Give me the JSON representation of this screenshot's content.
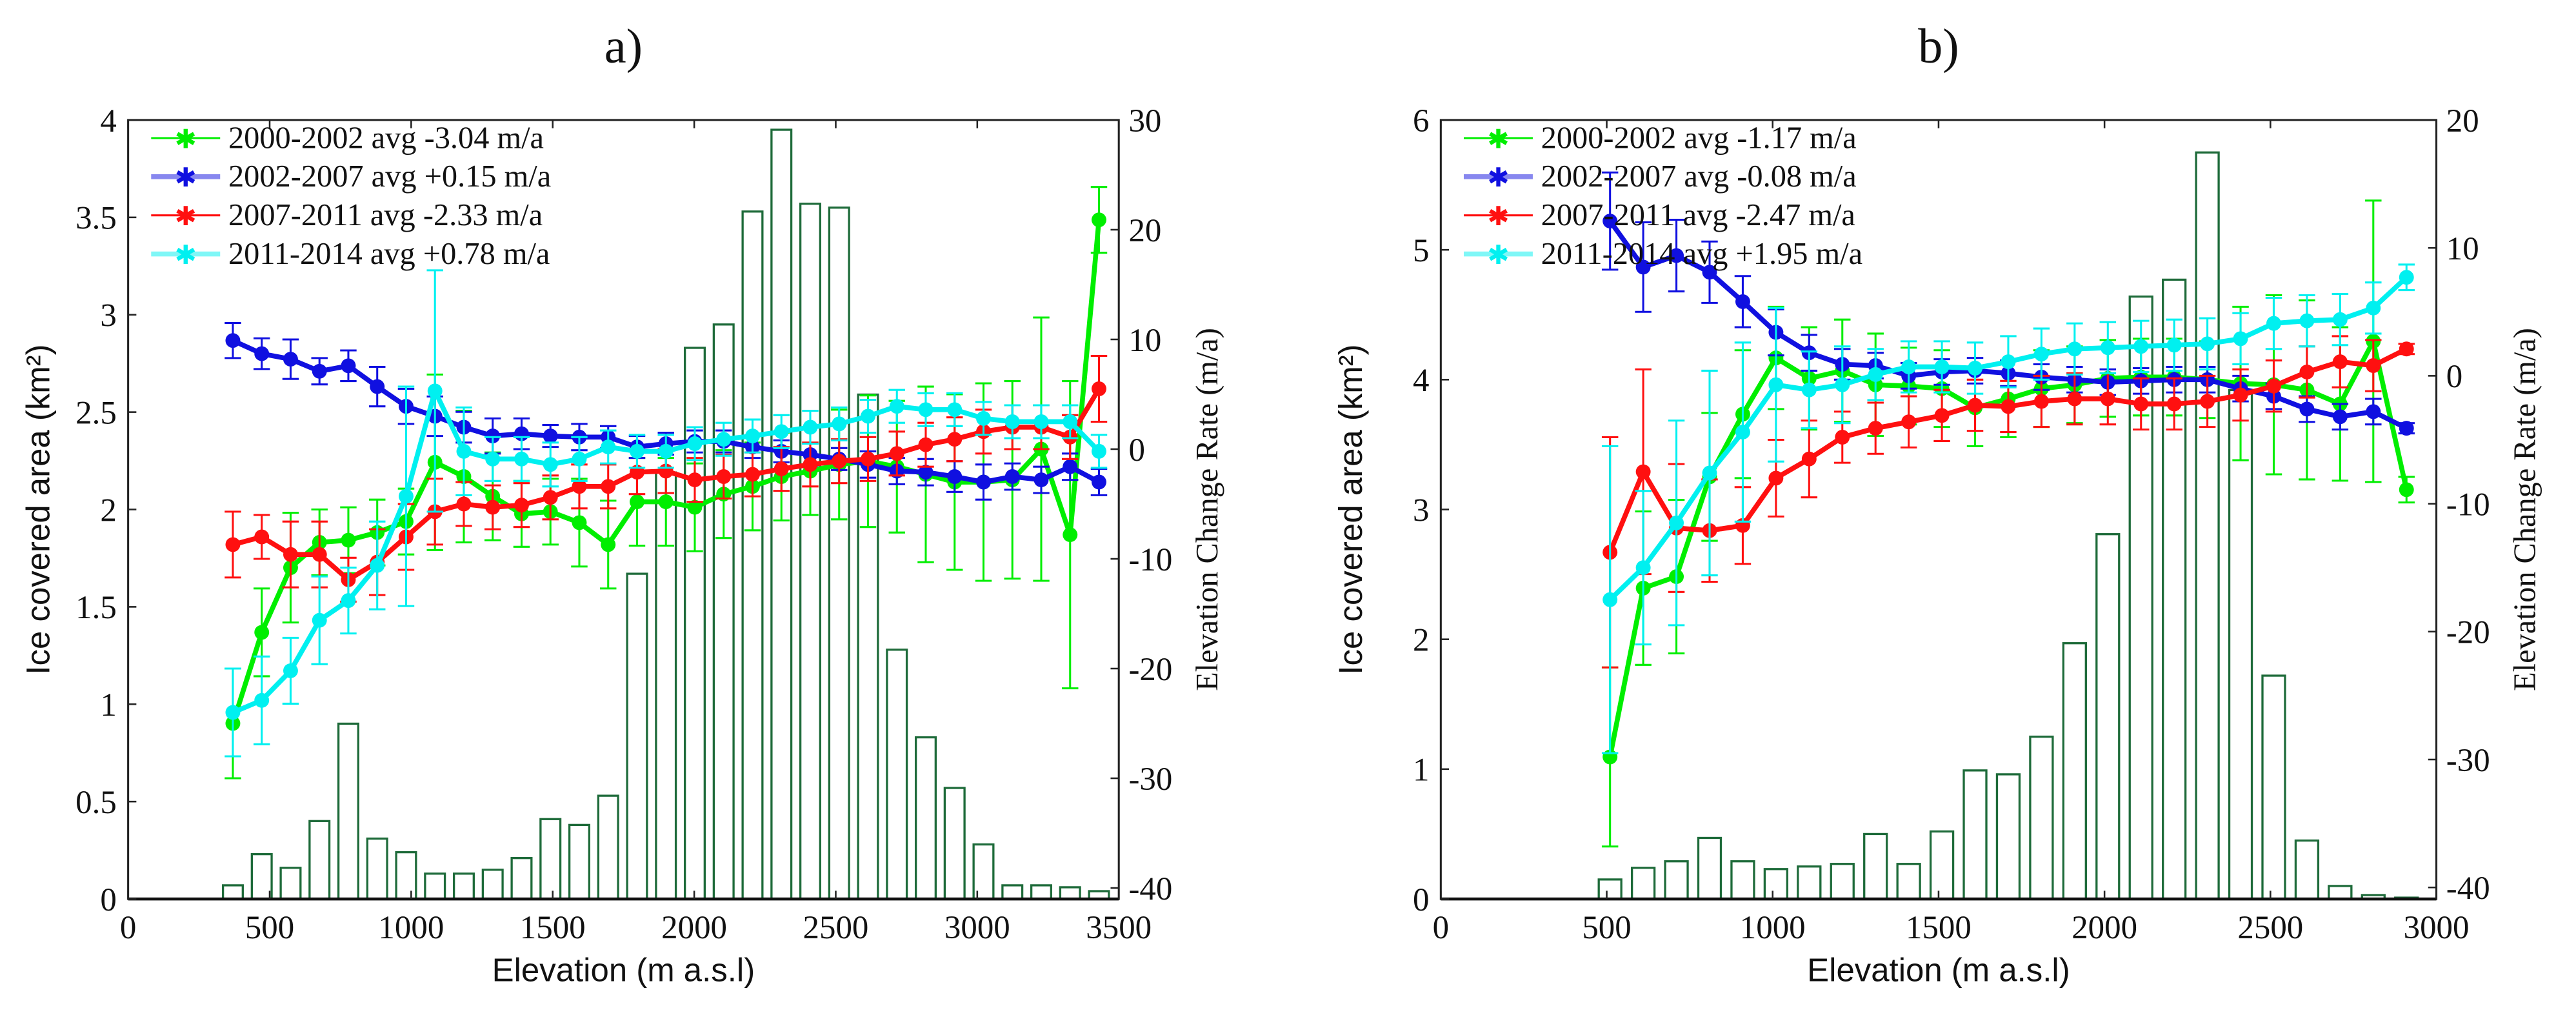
{
  "chart_data": [
    {
      "type": "bar+line",
      "title": "a)",
      "xlabel": "Elevation (m a.s.l)",
      "ylabel": "Ice covered area (km²)",
      "ylabel_right": "Elevation Change Rate (m/a)",
      "xlim": [
        0,
        3500
      ],
      "ylim": [
        0,
        4
      ],
      "ylim_right": [
        -41,
        30
      ],
      "xticks": [
        "0",
        "500",
        "1000",
        "1500",
        "2000",
        "2500",
        "3000",
        "3500"
      ],
      "yticks": [
        "0",
        "0.5",
        "1",
        "1.5",
        "2",
        "2.5",
        "3",
        "3.5",
        "4"
      ],
      "yticks_right": [
        "-40",
        "-30",
        "-20",
        "-10",
        "0",
        "10",
        "20",
        "30"
      ],
      "legend_position": "top-left",
      "bar_color": "#1e6b3a",
      "x": [
        370,
        472,
        574,
        676,
        778,
        880,
        982,
        1084,
        1186,
        1288,
        1390,
        1492,
        1594,
        1696,
        1798,
        1900,
        2002,
        2104,
        2206,
        2308,
        2410,
        2512,
        2614,
        2716,
        2818,
        2920,
        3022,
        3124,
        3226,
        3328,
        3430
      ],
      "bars": [
        0.07,
        0.23,
        0.16,
        0.4,
        0.9,
        0.31,
        0.24,
        0.13,
        0.13,
        0.15,
        0.21,
        0.41,
        0.38,
        0.53,
        1.67,
        2.19,
        2.83,
        2.95,
        3.53,
        3.95,
        3.57,
        3.55,
        2.59,
        1.28,
        0.83,
        0.57,
        0.28,
        0.07,
        0.07,
        0.06,
        0.04
      ],
      "series": [
        {
          "name": "2000-2002 avg -3.04 m/a",
          "color": "#00ee00",
          "values": [
            -25.0,
            -16.7,
            -10.8,
            -8.5,
            -8.3,
            -7.6,
            -6.6,
            -1.2,
            -2.5,
            -4.3,
            -5.9,
            -5.7,
            -6.7,
            -8.7,
            -4.8,
            -4.8,
            -5.3,
            -4.1,
            -3.4,
            -2.5,
            -2.0,
            -1.4,
            -1.1,
            -1.6,
            -2.3,
            -3.0,
            -3.0,
            -2.8,
            0.0,
            -7.8,
            20.9
          ],
          "err": [
            5,
            4,
            5,
            3,
            3,
            3,
            3,
            8,
            6,
            4,
            3,
            3,
            4,
            4,
            4,
            4,
            4,
            4,
            4,
            4,
            4,
            5,
            6,
            6,
            8,
            8,
            9,
            9,
            12,
            14,
            3
          ]
        },
        {
          "name": "2002-2007 avg +0.15 m/a",
          "color": "#1010e0",
          "values": [
            9.9,
            8.7,
            8.2,
            7.1,
            7.6,
            5.7,
            3.9,
            3.0,
            2.0,
            1.2,
            1.4,
            1.2,
            1.1,
            1.1,
            0.2,
            0.5,
            0.7,
            0.7,
            0.2,
            -0.2,
            -0.5,
            -0.9,
            -1.4,
            -2.0,
            -2.1,
            -2.5,
            -3.0,
            -2.5,
            -2.8,
            -1.6,
            -3.0
          ],
          "err": [
            1.6,
            1.4,
            1.8,
            1.2,
            1.4,
            1.8,
            1.6,
            1.8,
            1.4,
            1.6,
            1.4,
            1.0,
            1.2,
            1.0,
            1.0,
            1.0,
            1.0,
            1.0,
            1.0,
            1.0,
            1.0,
            1.0,
            1.2,
            1.2,
            1.2,
            1.4,
            1.6,
            1.2,
            1.2,
            1.2,
            1.2
          ]
        },
        {
          "name": "2007-2011 avg -2.33 m/a",
          "color": "#ff1010",
          "values": [
            -8.7,
            -8.0,
            -9.6,
            -9.6,
            -11.9,
            -10.3,
            -8.0,
            -5.7,
            -5.0,
            -5.3,
            -5.1,
            -4.4,
            -3.4,
            -3.4,
            -2.1,
            -2.0,
            -2.8,
            -2.5,
            -2.3,
            -1.8,
            -1.4,
            -1.1,
            -0.9,
            -0.4,
            0.4,
            0.9,
            1.6,
            2.0,
            2.0,
            1.1,
            5.5
          ],
          "err": [
            3,
            2,
            3,
            3,
            2,
            3,
            3,
            3,
            2,
            2,
            2,
            2,
            2,
            2,
            2,
            2,
            2,
            2,
            2,
            2,
            2,
            2,
            2,
            2,
            2,
            2,
            2,
            2,
            2,
            2,
            3
          ]
        },
        {
          "name": "2011-2014 avg +0.78 m/a",
          "color": "#00f0f0",
          "values": [
            -24.0,
            -22.9,
            -20.2,
            -15.6,
            -13.8,
            -10.6,
            -4.3,
            5.3,
            -0.2,
            -0.9,
            -0.9,
            -1.4,
            -0.9,
            0.2,
            -0.2,
            -0.2,
            0.5,
            0.9,
            1.2,
            1.6,
            2.0,
            2.3,
            3.0,
            3.9,
            3.6,
            3.6,
            2.8,
            2.5,
            2.5,
            2.5,
            -0.2
          ],
          "err": [
            4,
            4,
            3,
            4,
            3,
            4,
            10,
            11,
            4,
            2,
            2,
            2,
            2,
            1.5,
            1.5,
            1.5,
            1.5,
            1.5,
            1.5,
            1.5,
            1.5,
            1.5,
            1.5,
            1.5,
            1.5,
            1.5,
            1.5,
            1.5,
            1.5,
            1.5,
            1.5
          ]
        }
      ]
    },
    {
      "type": "bar+line",
      "title": "b)",
      "xlabel": "Elevation (m a.s.l)",
      "ylabel": "Ice covered area (km²)",
      "ylabel_right": "Elevation Change Rate (m/a)",
      "xlim": [
        0,
        3000
      ],
      "ylim": [
        0,
        6
      ],
      "ylim_right": [
        -40.9,
        20
      ],
      "xticks": [
        "0",
        "500",
        "1000",
        "1500",
        "2000",
        "2500",
        "3000"
      ],
      "yticks": [
        "0",
        "1",
        "2",
        "3",
        "4",
        "5",
        "6"
      ],
      "yticks_right": [
        "-40",
        "-30",
        "-20",
        "-10",
        "0",
        "10",
        "20"
      ],
      "legend_position": "top-left",
      "bar_color": "#1e6b3a",
      "x": [
        510,
        610,
        710,
        810,
        910,
        1010,
        1110,
        1210,
        1310,
        1410,
        1510,
        1610,
        1710,
        1810,
        1910,
        2010,
        2110,
        2210,
        2310,
        2410,
        2510,
        2610,
        2710,
        2810,
        2910
      ],
      "bars": [
        0.15,
        0.24,
        0.29,
        0.47,
        0.29,
        0.23,
        0.25,
        0.27,
        0.5,
        0.27,
        0.52,
        0.99,
        0.96,
        1.25,
        1.97,
        2.81,
        4.64,
        4.77,
        5.75,
        3.92,
        1.72,
        0.45,
        0.1,
        0.03,
        0.01
      ],
      "series": [
        {
          "name": "2000-2002 avg -1.17 m/a",
          "color": "#00ee00",
          "values": [
            -29.8,
            -16.6,
            -15.7,
            -7.9,
            -3.0,
            1.4,
            -0.2,
            0.4,
            -0.7,
            -0.8,
            -1.0,
            -2.5,
            -1.8,
            -1.0,
            -0.7,
            -0.2,
            -0.1,
            -0.1,
            -0.3,
            -0.6,
            -0.7,
            -1.1,
            -2.2,
            2.7,
            -8.9
          ],
          "err": [
            7,
            6,
            6,
            5,
            5,
            4,
            4,
            4,
            4,
            3,
            3,
            3,
            3,
            3,
            3,
            3,
            3,
            3,
            3,
            6,
            7,
            7,
            6,
            11,
            1
          ]
        },
        {
          "name": "2002-2007 avg -0.08 m/a",
          "color": "#1010e0",
          "values": [
            12.1,
            8.5,
            9.4,
            8.1,
            5.8,
            3.4,
            1.8,
            0.9,
            0.8,
            0.0,
            0.3,
            0.4,
            0.2,
            -0.1,
            -0.3,
            -0.5,
            -0.4,
            -0.3,
            -0.3,
            -1.0,
            -1.6,
            -2.6,
            -3.2,
            -2.8,
            -4.1
          ],
          "err": [
            3.8,
            3.5,
            2.8,
            2.4,
            2.0,
            1.8,
            1.4,
            1.2,
            1.0,
            1.0,
            1.0,
            1.0,
            1.0,
            1.0,
            1.0,
            1.0,
            1.0,
            1.0,
            1.0,
            1.0,
            1.0,
            1.0,
            1.0,
            1.0,
            0.4
          ]
        },
        {
          "name": "2007-2011 avg -2.47 m/a",
          "color": "#ff1010",
          "values": [
            -13.8,
            -7.5,
            -11.9,
            -12.1,
            -11.7,
            -8.0,
            -6.5,
            -4.8,
            -4.1,
            -3.6,
            -3.1,
            -2.3,
            -2.4,
            -2.0,
            -1.8,
            -1.8,
            -2.2,
            -2.2,
            -2.0,
            -1.5,
            -0.8,
            0.3,
            1.1,
            0.8,
            2.1
          ],
          "err": [
            9,
            8,
            5,
            4,
            3,
            3,
            3,
            2,
            2,
            2,
            2,
            2,
            2,
            2,
            2,
            2,
            2,
            2,
            2,
            2,
            2,
            2,
            2,
            2,
            0.4
          ]
        },
        {
          "name": "2011-2014 avg +1.95 m/a",
          "color": "#00f0f0",
          "values": [
            -17.5,
            -15.0,
            -11.5,
            -7.6,
            -4.4,
            -0.7,
            -1.1,
            -0.7,
            0.1,
            0.7,
            0.7,
            0.6,
            1.1,
            1.7,
            2.1,
            2.2,
            2.3,
            2.4,
            2.5,
            2.9,
            4.1,
            4.3,
            4.4,
            5.3,
            7.7
          ],
          "err": [
            12,
            6,
            8,
            8,
            7,
            6,
            3,
            3,
            2,
            2,
            2,
            2,
            2,
            2,
            2,
            2,
            2,
            2,
            2,
            2,
            2,
            2,
            2,
            2,
            1
          ]
        }
      ]
    }
  ]
}
